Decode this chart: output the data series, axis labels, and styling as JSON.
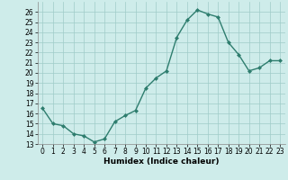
{
  "x": [
    0,
    1,
    2,
    3,
    4,
    5,
    6,
    7,
    8,
    9,
    10,
    11,
    12,
    13,
    14,
    15,
    16,
    17,
    18,
    19,
    20,
    21,
    22,
    23
  ],
  "y": [
    16.5,
    15.0,
    14.8,
    14.0,
    13.8,
    13.2,
    13.5,
    15.2,
    15.8,
    16.3,
    18.5,
    19.5,
    20.2,
    23.5,
    25.2,
    26.2,
    25.8,
    25.5,
    23.0,
    21.8,
    20.2,
    20.5,
    21.2,
    21.2
  ],
  "line_color": "#2e7d6e",
  "marker": "D",
  "marker_size": 2.0,
  "bg_color": "#ceecea",
  "grid_color": "#a0ccc8",
  "xlabel": "Humidex (Indice chaleur)",
  "xlabel_fontsize": 6.5,
  "ylim": [
    13,
    27
  ],
  "xlim": [
    -0.5,
    23.5
  ],
  "yticks": [
    13,
    14,
    15,
    16,
    17,
    18,
    19,
    20,
    21,
    22,
    23,
    24,
    25,
    26
  ],
  "xticks": [
    0,
    1,
    2,
    3,
    4,
    5,
    6,
    7,
    8,
    9,
    10,
    11,
    12,
    13,
    14,
    15,
    16,
    17,
    18,
    19,
    20,
    21,
    22,
    23
  ],
  "tick_fontsize": 5.5,
  "linewidth": 1.0
}
